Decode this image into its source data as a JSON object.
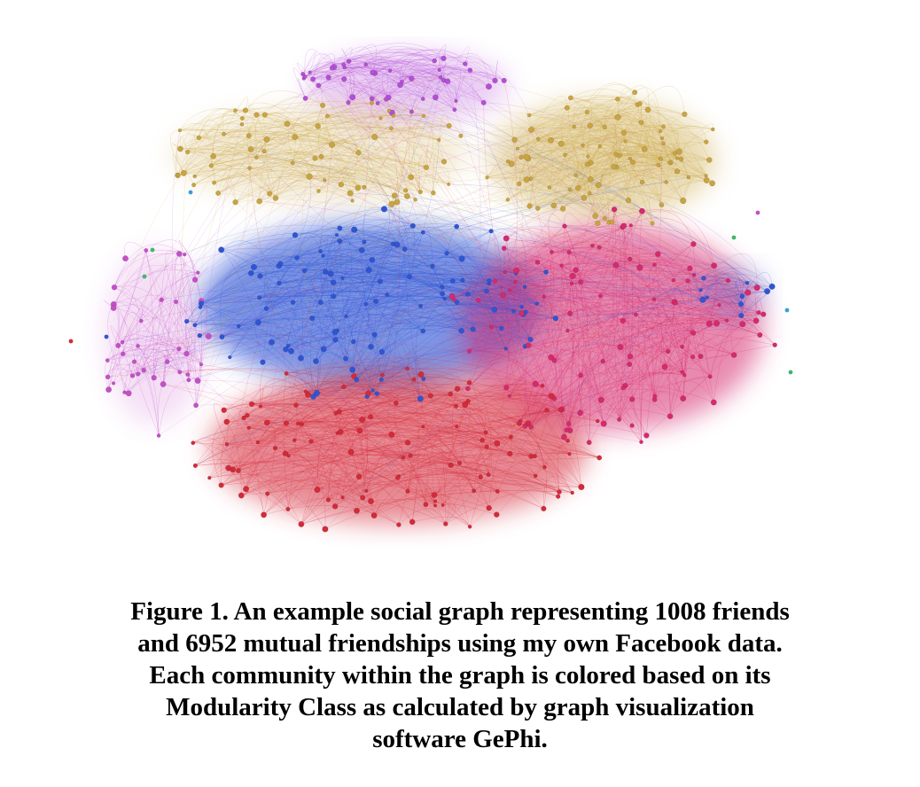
{
  "caption": {
    "lines": [
      "Figure 1. An example social graph representing 1008 friends",
      "and 6952 mutual friendships using my own Facebook data.",
      "Each community within the graph is colored based on its",
      "Modularity Class as calculated by graph visualization",
      "software GePhi."
    ]
  },
  "graph": {
    "communities": [
      {
        "color": "#b54fd6"
      },
      {
        "color": "#c9a440"
      },
      {
        "color": "#2f55d4"
      },
      {
        "color": "#d62a6e"
      },
      {
        "color": "#d42a3a"
      },
      {
        "color": "#c64fc9"
      },
      {
        "color": "#3aa0d0"
      },
      {
        "color": "#3cb86a"
      }
    ]
  }
}
